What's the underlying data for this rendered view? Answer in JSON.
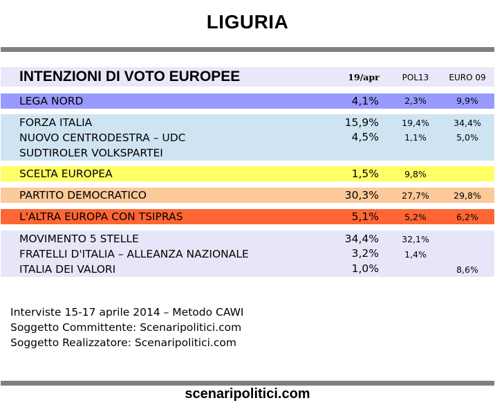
{
  "title": "LIGURIA",
  "table": {
    "header": "INTENZIONI DI VOTO EUROPEE",
    "columns": [
      "19/apr",
      "POL13",
      "EURO 09"
    ]
  },
  "groups": [
    {
      "color": "#9999ff",
      "rows": [
        {
          "party": "LEGA NORD",
          "v1": "4,1%",
          "v2": "2,3%",
          "v3": "9,9%"
        }
      ]
    },
    {
      "color": "#cfe4f2",
      "rows": [
        {
          "party": "FORZA ITALIA",
          "v1": "15,9%",
          "v2": "19,4%",
          "v3": "34,4%"
        },
        {
          "party": "NUOVO CENTRODESTRA – UDC",
          "v1": "4,5%",
          "v2": "1,1%",
          "v3": "5,0%"
        },
        {
          "party": "SUDTIROLER VOLKSPARTEI",
          "v1": "",
          "v2": "",
          "v3": ""
        }
      ]
    },
    {
      "color": "#ffff66",
      "rows": [
        {
          "party": "SCELTA EUROPEA",
          "v1": "1,5%",
          "v2": "9,8%",
          "v3": ""
        }
      ]
    },
    {
      "color": "#fbc99a",
      "rows": [
        {
          "party": "PARTITO DEMOCRATICO",
          "v1": "30,3%",
          "v2": "27,7%",
          "v3": "29,8%"
        }
      ]
    },
    {
      "color": "#ff6633",
      "rows": [
        {
          "party": "L'ALTRA EUROPA CON TSIPRAS",
          "v1": "5,1%",
          "v2": "5,2%",
          "v3": "6,2%"
        }
      ]
    },
    {
      "color": "#e6e6f8",
      "rows": [
        {
          "party": "MOVIMENTO 5 STELLE",
          "v1": "34,4%",
          "v2": "32,1%",
          "v3": ""
        },
        {
          "party": "FRATELLI D'ITALIA – ALLEANZA NAZIONALE",
          "v1": "3,2%",
          "v2": "1,4%",
          "v3": ""
        },
        {
          "party": "ITALIA DEI VALORI",
          "v1": "1,0%",
          "v2": "",
          "v3": "8,6%"
        }
      ]
    }
  ],
  "footer": {
    "line1": "Interviste 15-17 aprile 2014 – Metodo CAWI",
    "line2": "Soggetto Committente: Scenaripolitici.com",
    "line3": "Soggetto Realizzatore: Scenaripolitici.com"
  },
  "site": "scenaripolitici.com"
}
